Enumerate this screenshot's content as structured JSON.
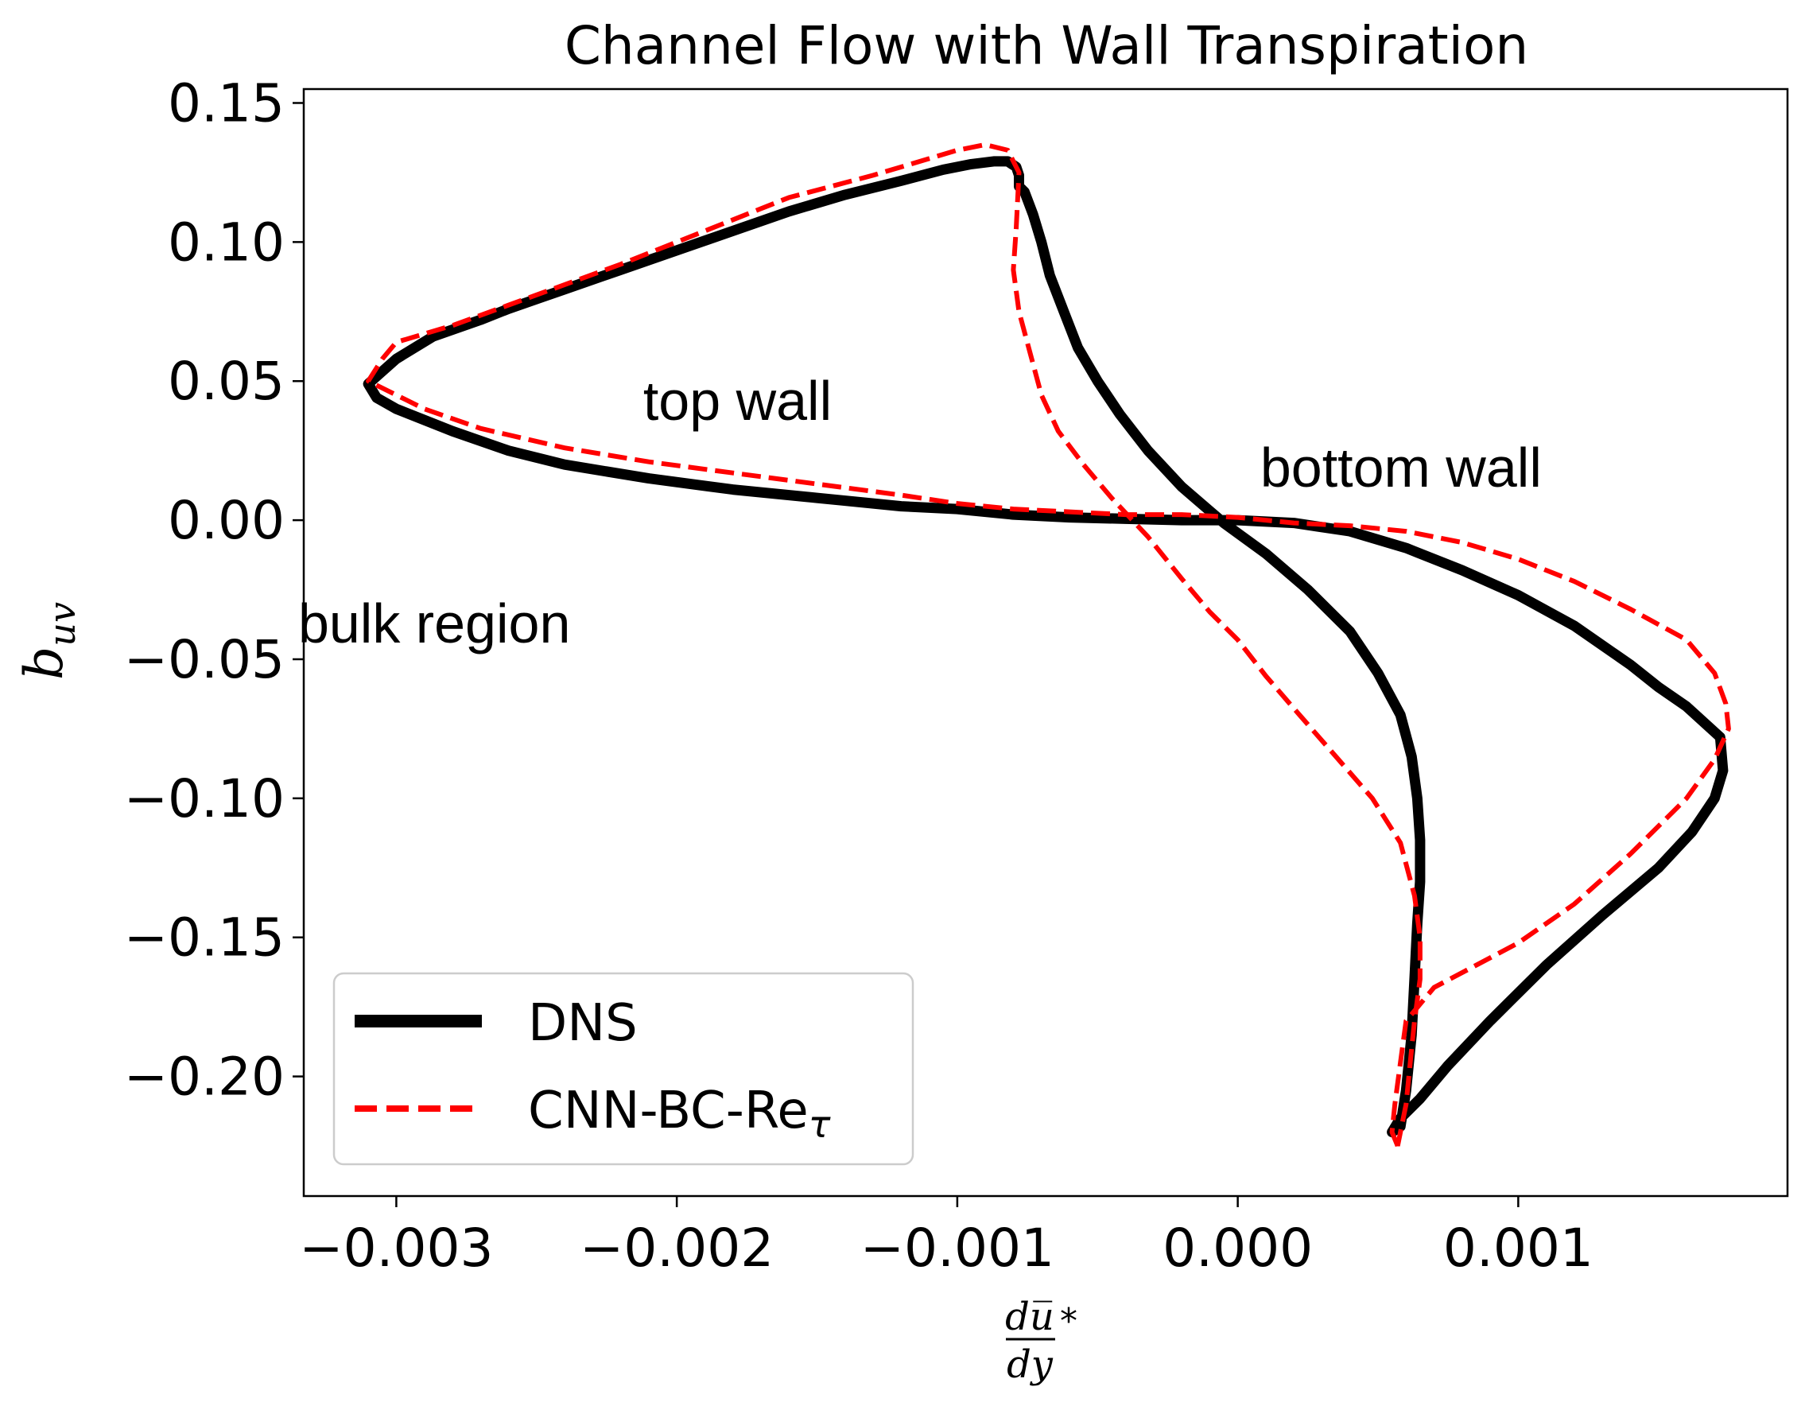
{
  "chart_data": {
    "type": "line",
    "title": "Channel Flow with Wall Transpiration",
    "xlabel": {
      "numerator": "du̅",
      "denominator": "dy",
      "suffix": "*"
    },
    "ylabel": {
      "base": "b",
      "subscript": "uv"
    },
    "xlim": [
      -0.00333,
      0.00196
    ],
    "ylim": [
      -0.243,
      0.155
    ],
    "x_ticks": [
      {
        "value": -0.003,
        "label": "−0.003"
      },
      {
        "value": -0.002,
        "label": "−0.002"
      },
      {
        "value": -0.001,
        "label": "−0.001"
      },
      {
        "value": 0.0,
        "label": "0.000"
      },
      {
        "value": 0.001,
        "label": "0.001"
      }
    ],
    "y_ticks": [
      {
        "value": 0.15,
        "label": "0.15"
      },
      {
        "value": 0.1,
        "label": "0.10"
      },
      {
        "value": 0.05,
        "label": "0.05"
      },
      {
        "value": 0.0,
        "label": "0.00"
      },
      {
        "value": -0.05,
        "label": "−0.05"
      },
      {
        "value": -0.1,
        "label": "−0.10"
      },
      {
        "value": -0.15,
        "label": "−0.15"
      },
      {
        "value": -0.2,
        "label": "−0.20"
      }
    ],
    "grid": false,
    "legend": {
      "position": "lower-left"
    },
    "annotations": [
      {
        "text": "top wall",
        "x": -0.00212,
        "y": 0.036
      },
      {
        "text": "bottom wall",
        "x": 8e-05,
        "y": 0.012
      },
      {
        "text": "bulk region",
        "x": -0.00335,
        "y": -0.044
      }
    ],
    "series": [
      {
        "name": "DNS",
        "name_sub": "",
        "color": "#000000",
        "style": "solid",
        "x": [
          0.00055,
          0.00058,
          0.0006,
          0.00062,
          0.00063,
          0.00064,
          0.00065,
          0.00065,
          0.00064,
          0.00062,
          0.00058,
          0.0005,
          0.0004,
          0.00025,
          0.0001,
          -5e-05,
          -0.0002,
          -0.00032,
          -0.00042,
          -0.0005,
          -0.00057,
          -0.00062,
          -0.00067,
          -0.0007,
          -0.00073,
          -0.00076,
          -0.00078,
          -0.00078,
          -0.00079,
          -0.00082,
          -0.00087,
          -0.00095,
          -0.00105,
          -0.0012,
          -0.0014,
          -0.0016,
          -0.0018,
          -0.002,
          -0.0022,
          -0.0024,
          -0.0026,
          -0.0027,
          -0.00287,
          -0.003,
          -0.0031,
          -0.00307,
          -0.003,
          -0.0028,
          -0.0026,
          -0.0024,
          -0.0021,
          -0.0018,
          -0.0015,
          -0.0012,
          -0.001,
          -0.0008,
          -0.0006,
          -0.0004,
          -0.0002,
          0.0,
          0.0002,
          0.0004,
          0.0006,
          0.0008,
          0.001,
          0.0012,
          0.0014,
          0.0015,
          0.0016,
          0.00172,
          0.00173,
          0.0017,
          0.00162,
          0.0015,
          0.0013,
          0.0011,
          0.0009,
          0.00075,
          0.00065,
          0.00058,
          0.00055
        ],
        "y": [
          -0.22,
          -0.218,
          -0.205,
          -0.185,
          -0.165,
          -0.145,
          -0.13,
          -0.115,
          -0.1,
          -0.085,
          -0.07,
          -0.055,
          -0.04,
          -0.025,
          -0.012,
          -0.001,
          0.012,
          0.025,
          0.038,
          0.05,
          0.062,
          0.075,
          0.088,
          0.1,
          0.11,
          0.118,
          0.12,
          0.124,
          0.127,
          0.129,
          0.129,
          0.128,
          0.126,
          0.122,
          0.117,
          0.111,
          0.104,
          0.097,
          0.09,
          0.083,
          0.076,
          0.072,
          0.066,
          0.058,
          0.049,
          0.044,
          0.04,
          0.032,
          0.025,
          0.02,
          0.015,
          0.011,
          0.008,
          0.005,
          0.004,
          0.002,
          0.001,
          0.0005,
          0.0,
          0.0,
          -0.001,
          -0.004,
          -0.01,
          -0.018,
          -0.027,
          -0.038,
          -0.052,
          -0.06,
          -0.067,
          -0.078,
          -0.09,
          -0.1,
          -0.112,
          -0.125,
          -0.142,
          -0.16,
          -0.18,
          -0.196,
          -0.208,
          -0.215,
          -0.22
        ]
      },
      {
        "name": "CNN-BC-Re",
        "name_sub": "τ",
        "color": "#ff0000",
        "style": "dashed",
        "x": [
          0.00057,
          0.00055,
          0.00056,
          0.00058,
          0.0006,
          0.0007,
          0.00085,
          0.001,
          0.0012,
          0.0014,
          0.0016,
          0.0017,
          0.00175,
          0.00174,
          0.0017,
          0.0016,
          0.0014,
          0.0012,
          0.001,
          0.0008,
          0.0006,
          0.0004,
          0.0002,
          0.0,
          -0.0002,
          -0.0004,
          -0.0006,
          -0.0008,
          -0.001,
          -0.0012,
          -0.0015,
          -0.0018,
          -0.0021,
          -0.0024,
          -0.0027,
          -0.0029,
          -0.0031,
          -0.00305,
          -0.003,
          -0.0028,
          -0.0025,
          -0.0022,
          -0.0019,
          -0.0016,
          -0.0013,
          -0.001,
          -0.0009,
          -0.00082,
          -0.00078,
          -0.00079,
          -0.0008,
          -0.00078,
          -0.00074,
          -0.0007,
          -0.00064,
          -0.00055,
          -0.00045,
          -0.00032,
          -0.0002,
          -0.0001,
          0.0,
          0.0001,
          0.00022,
          0.00035,
          0.00048,
          0.00058,
          0.00063,
          0.00065,
          0.00065,
          0.00063,
          0.00062,
          0.00061,
          0.0006,
          0.00057
        ],
        "y": [
          -0.225,
          -0.22,
          -0.21,
          -0.195,
          -0.18,
          -0.168,
          -0.16,
          -0.152,
          -0.138,
          -0.12,
          -0.1,
          -0.086,
          -0.075,
          -0.066,
          -0.055,
          -0.043,
          -0.032,
          -0.022,
          -0.014,
          -0.008,
          -0.004,
          -0.002,
          -0.001,
          0.001,
          0.002,
          0.002,
          0.003,
          0.004,
          0.006,
          0.009,
          0.013,
          0.017,
          0.021,
          0.026,
          0.033,
          0.04,
          0.05,
          0.058,
          0.064,
          0.07,
          0.081,
          0.092,
          0.104,
          0.116,
          0.124,
          0.133,
          0.135,
          0.133,
          0.125,
          0.105,
          0.09,
          0.075,
          0.06,
          0.045,
          0.032,
          0.02,
          0.008,
          -0.006,
          -0.021,
          -0.033,
          -0.043,
          -0.056,
          -0.07,
          -0.085,
          -0.1,
          -0.116,
          -0.135,
          -0.15,
          -0.165,
          -0.18,
          -0.19,
          -0.2,
          -0.21,
          -0.225
        ]
      }
    ]
  }
}
